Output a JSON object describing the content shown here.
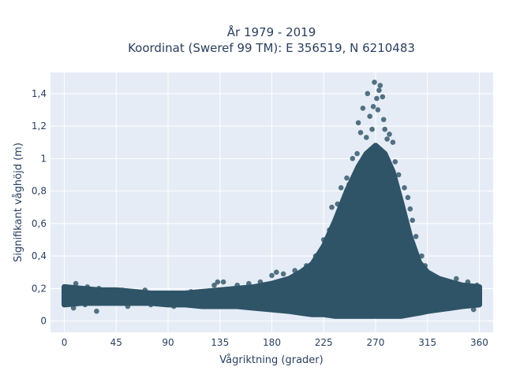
{
  "chart_data": {
    "type": "scatter",
    "title_line1": "År 1979 - 2019",
    "title_line2": "Koordinat (Sweref 99 TM): E 356519, N 6210483",
    "xlabel": "Vågriktning (grader)",
    "ylabel": "Signifikant våghöjd (m)",
    "xlim": [
      -12,
      372
    ],
    "ylim": [
      -0.07,
      1.53
    ],
    "x_ticks": [
      0,
      45,
      90,
      135,
      180,
      225,
      270,
      315,
      360
    ],
    "x_tick_labels": [
      "0",
      "45",
      "90",
      "135",
      "180",
      "225",
      "270",
      "315",
      "360"
    ],
    "y_ticks": [
      0,
      0.2,
      0.4,
      0.6,
      0.8,
      1.0,
      1.2,
      1.4
    ],
    "y_tick_labels": [
      "0",
      "0,2",
      "0,4",
      "0,6",
      "0,8",
      "1",
      "1,2",
      "1,4"
    ],
    "grid": true,
    "marker_color": "#2f5468",
    "plot_background": "#e5ecf6",
    "series": [
      {
        "points": [
          [
            0,
            0.16
          ],
          [
            2,
            0.21
          ],
          [
            4,
            0.12
          ],
          [
            6,
            0.19
          ],
          [
            8,
            0.08
          ],
          [
            10,
            0.23
          ],
          [
            12,
            0.14
          ],
          [
            15,
            0.18
          ],
          [
            18,
            0.1
          ],
          [
            20,
            0.21
          ],
          [
            25,
            0.16
          ],
          [
            28,
            0.06
          ],
          [
            30,
            0.2
          ],
          [
            35,
            0.13
          ],
          [
            40,
            0.18
          ],
          [
            45,
            0.12
          ],
          [
            50,
            0.19
          ],
          [
            55,
            0.09
          ],
          [
            60,
            0.17
          ],
          [
            65,
            0.14
          ],
          [
            70,
            0.19
          ],
          [
            75,
            0.1
          ],
          [
            80,
            0.16
          ],
          [
            85,
            0.13
          ],
          [
            90,
            0.17
          ],
          [
            95,
            0.09
          ],
          [
            100,
            0.16
          ],
          [
            105,
            0.12
          ],
          [
            110,
            0.18
          ],
          [
            115,
            0.1
          ],
          [
            120,
            0.15
          ],
          [
            125,
            0.12
          ],
          [
            130,
            0.22
          ],
          [
            133,
            0.24
          ],
          [
            138,
            0.24
          ],
          [
            140,
            0.1
          ],
          [
            145,
            0.18
          ],
          [
            150,
            0.22
          ],
          [
            155,
            0.12
          ],
          [
            160,
            0.23
          ],
          [
            165,
            0.08
          ],
          [
            170,
            0.24
          ],
          [
            175,
            0.12
          ],
          [
            180,
            0.28
          ],
          [
            184,
            0.3
          ],
          [
            188,
            0.1
          ],
          [
            190,
            0.29
          ],
          [
            195,
            0.14
          ],
          [
            200,
            0.31
          ],
          [
            205,
            0.06
          ],
          [
            210,
            0.34
          ],
          [
            214,
            0.12
          ],
          [
            218,
            0.4
          ],
          [
            222,
            0.05
          ],
          [
            225,
            0.5
          ],
          [
            228,
            0.1
          ],
          [
            230,
            0.56
          ],
          [
            232,
            0.7
          ],
          [
            235,
            0.06
          ],
          [
            237,
            0.72
          ],
          [
            240,
            0.82
          ],
          [
            242,
            0.05
          ],
          [
            245,
            0.88
          ],
          [
            247,
            0.84
          ],
          [
            250,
            1.0
          ],
          [
            252,
            0.05
          ],
          [
            254,
            1.03
          ],
          [
            255,
            1.22
          ],
          [
            257,
            1.16
          ],
          [
            259,
            1.31
          ],
          [
            260,
            0.05
          ],
          [
            262,
            1.13
          ],
          [
            263,
            1.4
          ],
          [
            265,
            1.26
          ],
          [
            267,
            1.18
          ],
          [
            268,
            1.32
          ],
          [
            269,
            1.47
          ],
          [
            271,
            1.37
          ],
          [
            272,
            1.3
          ],
          [
            273,
            1.42
          ],
          [
            274,
            1.45
          ],
          [
            275,
            1.02
          ],
          [
            276,
            1.38
          ],
          [
            277,
            1.24
          ],
          [
            278,
            1.18
          ],
          [
            280,
            1.12
          ],
          [
            282,
            1.15
          ],
          [
            283,
            0.05
          ],
          [
            285,
            1.1
          ],
          [
            287,
            0.98
          ],
          [
            290,
            0.9
          ],
          [
            292,
            0.04
          ],
          [
            295,
            0.82
          ],
          [
            298,
            0.76
          ],
          [
            300,
            0.69
          ],
          [
            302,
            0.62
          ],
          [
            305,
            0.52
          ],
          [
            308,
            0.06
          ],
          [
            310,
            0.4
          ],
          [
            313,
            0.34
          ],
          [
            315,
            0.3
          ],
          [
            318,
            0.08
          ],
          [
            320,
            0.28
          ],
          [
            325,
            0.26
          ],
          [
            330,
            0.1
          ],
          [
            335,
            0.24
          ],
          [
            340,
            0.26
          ],
          [
            345,
            0.09
          ],
          [
            350,
            0.24
          ],
          [
            355,
            0.07
          ],
          [
            358,
            0.22
          ],
          [
            360,
            0.2
          ]
        ],
        "bands": [
          [
            0,
            0.1,
            0.21
          ],
          [
            15,
            0.11,
            0.2
          ],
          [
            30,
            0.11,
            0.19
          ],
          [
            45,
            0.11,
            0.19
          ],
          [
            60,
            0.11,
            0.18
          ],
          [
            75,
            0.11,
            0.17
          ],
          [
            90,
            0.1,
            0.17
          ],
          [
            105,
            0.1,
            0.17
          ],
          [
            120,
            0.09,
            0.18
          ],
          [
            135,
            0.09,
            0.19
          ],
          [
            150,
            0.09,
            0.2
          ],
          [
            165,
            0.08,
            0.21
          ],
          [
            180,
            0.07,
            0.23
          ],
          [
            195,
            0.06,
            0.26
          ],
          [
            205,
            0.05,
            0.3
          ],
          [
            215,
            0.04,
            0.35
          ],
          [
            225,
            0.04,
            0.46
          ],
          [
            235,
            0.03,
            0.62
          ],
          [
            245,
            0.03,
            0.8
          ],
          [
            255,
            0.03,
            0.95
          ],
          [
            262,
            0.03,
            1.03
          ],
          [
            270,
            0.03,
            1.08
          ],
          [
            278,
            0.03,
            1.03
          ],
          [
            285,
            0.03,
            0.92
          ],
          [
            292,
            0.03,
            0.74
          ],
          [
            300,
            0.04,
            0.52
          ],
          [
            308,
            0.05,
            0.36
          ],
          [
            315,
            0.06,
            0.3
          ],
          [
            325,
            0.07,
            0.26
          ],
          [
            335,
            0.08,
            0.24
          ],
          [
            345,
            0.09,
            0.22
          ],
          [
            360,
            0.1,
            0.21
          ]
        ]
      }
    ]
  }
}
